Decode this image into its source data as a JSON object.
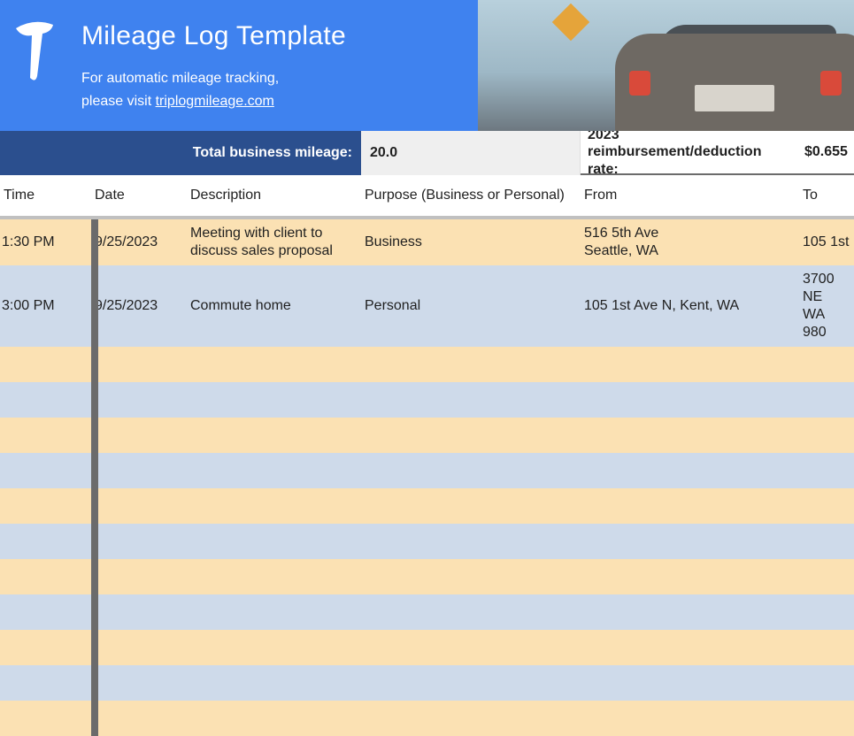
{
  "header": {
    "title": "Mileage Log Template",
    "subtitle_line1": "For automatic mileage tracking,",
    "subtitle_line2_prefix": "please visit ",
    "subtitle_link": "triplogmileage.com"
  },
  "totals": {
    "label": "Total business mileage:",
    "value": "20.0",
    "rate_label": "2023 reimbursement/deduction rate:",
    "rate_value": "$0.655"
  },
  "columns": {
    "time": "Time",
    "date": "Date",
    "description": "Description",
    "purpose": "Purpose (Business or Personal)",
    "from": "From",
    "to": "To"
  },
  "rows": [
    {
      "time": "1:30 PM",
      "date": "9/25/2023",
      "description": "Meeting with client to discuss sales proposal",
      "purpose": "Business",
      "from": "516 5th Ave\nSeattle, WA",
      "to": "105 1st "
    },
    {
      "time": "3:00 PM",
      "date": "9/25/2023",
      "description": "Commute home",
      "purpose": "Personal",
      "from": "105 1st Ave N, Kent, WA",
      "to": "3700 NE\nWA 980"
    },
    {
      "time": "",
      "date": "",
      "description": "",
      "purpose": "",
      "from": "",
      "to": ""
    },
    {
      "time": "",
      "date": "",
      "description": "",
      "purpose": "",
      "from": "",
      "to": ""
    },
    {
      "time": "",
      "date": "",
      "description": "",
      "purpose": "",
      "from": "",
      "to": ""
    },
    {
      "time": "",
      "date": "",
      "description": "",
      "purpose": "",
      "from": "",
      "to": ""
    },
    {
      "time": "",
      "date": "",
      "description": "",
      "purpose": "",
      "from": "",
      "to": ""
    },
    {
      "time": "",
      "date": "",
      "description": "",
      "purpose": "",
      "from": "",
      "to": ""
    },
    {
      "time": "",
      "date": "",
      "description": "",
      "purpose": "",
      "from": "",
      "to": ""
    },
    {
      "time": "",
      "date": "",
      "description": "",
      "purpose": "",
      "from": "",
      "to": ""
    },
    {
      "time": "",
      "date": "",
      "description": "",
      "purpose": "",
      "from": "",
      "to": ""
    },
    {
      "time": "",
      "date": "",
      "description": "",
      "purpose": "",
      "from": "",
      "to": ""
    },
    {
      "time": "",
      "date": "",
      "description": "",
      "purpose": "",
      "from": "",
      "to": ""
    }
  ],
  "colors": {
    "banner_bg": "#3f82ef",
    "totals_label_bg": "#2b4f8e",
    "totals_value_bg": "#efefef",
    "row_even_bg": "#fbe1b3",
    "row_odd_bg": "#cedaea",
    "header_separator": "#c0c0c0",
    "text": "#1f1f1f"
  }
}
